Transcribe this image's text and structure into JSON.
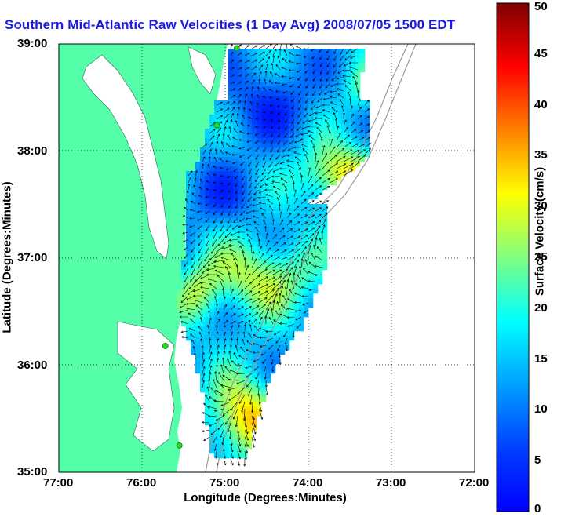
{
  "title": "Southern Mid-Atlantic Raw Velocities (1 Day Avg) 2008/07/05 1500 EDT",
  "axes": {
    "xlabel": "Longitude (Degrees:Minutes)",
    "ylabel": "Latitude (Degrees:Minutes)",
    "x_ticks": [
      "77:00",
      "76:00",
      "75:00",
      "74:00",
      "73:00",
      "72:00"
    ],
    "y_ticks": [
      "39:00",
      "38:00",
      "37:00",
      "36:00",
      "35:00"
    ],
    "xlim": [
      -77,
      -72
    ],
    "ylim": [
      35,
      39
    ]
  },
  "colorbar": {
    "label": "Surface Velocity (cm/s)",
    "ticks": [
      "0",
      "5",
      "10",
      "15",
      "20",
      "25",
      "30",
      "35",
      "40",
      "45",
      "50"
    ],
    "range": [
      0,
      50
    ],
    "colormap": "jet"
  },
  "colors": {
    "land": "#55ffaa",
    "ocean": "#ffffff",
    "title": "#1a1ae6",
    "stations": "#22dd22",
    "arrows": "#000000"
  },
  "stations": [
    {
      "lon": -74.86,
      "lat": 38.96
    },
    {
      "lon": -75.1,
      "lat": 38.24
    },
    {
      "lon": -75.72,
      "lat": 36.18
    },
    {
      "lon": -75.55,
      "lat": 35.25
    }
  ]
}
